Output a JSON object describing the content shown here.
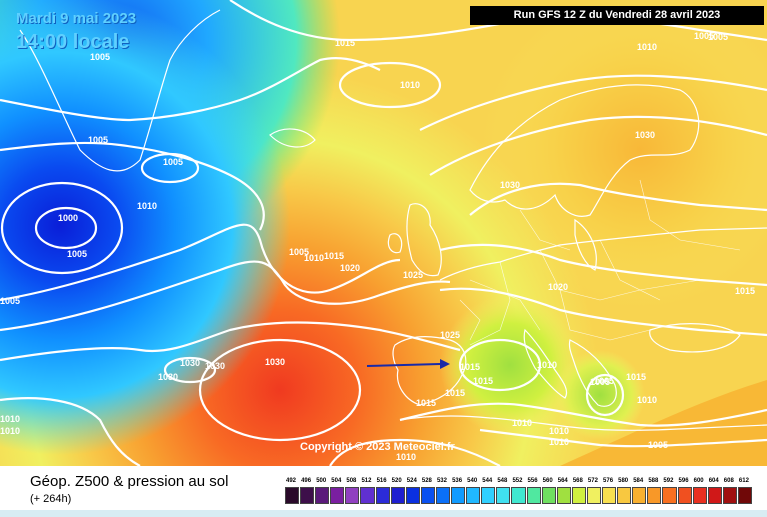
{
  "header": {
    "date": "Mardi 9 mai 2023",
    "local_time": "14:00 locale",
    "run": "Run GFS 12 Z du Vendredi 28 avril 2023"
  },
  "footer": {
    "title": "Géop. Z500 & pression au sol",
    "subtitle": "(+ 264h)"
  },
  "copyright": "Copyright © 2023 Meteociel.fr",
  "legend": {
    "values": [
      "492",
      "496",
      "500",
      "504",
      "508",
      "512",
      "516",
      "520",
      "524",
      "528",
      "532",
      "536",
      "540",
      "544",
      "548",
      "552",
      "556",
      "560",
      "564",
      "568",
      "572",
      "576",
      "580",
      "584",
      "588",
      "592",
      "596",
      "600",
      "604",
      "608",
      "612"
    ],
    "colors": [
      "#2a0a2a",
      "#3d0f4a",
      "#5a1a7a",
      "#7a1fa0",
      "#9040c0",
      "#6030d0",
      "#2b2bd8",
      "#1f1fd0",
      "#0a30e0",
      "#0a50f0",
      "#0a70f8",
      "#109bff",
      "#20b8ff",
      "#30d0ff",
      "#40e0f0",
      "#40e8d0",
      "#50e8a0",
      "#70e060",
      "#a0e040",
      "#d0f040",
      "#f0f060",
      "#f8e050",
      "#f8c840",
      "#f8b030",
      "#f89828",
      "#f87020",
      "#f05020",
      "#e83020",
      "#d01818",
      "#a01010",
      "#700808"
    ]
  },
  "isobars": [
    {
      "label": "1005"
    },
    {
      "label": "1015"
    },
    {
      "label": "1010"
    },
    {
      "label": "1005"
    },
    {
      "label": "1010"
    },
    {
      "label": "1005"
    },
    {
      "label": "1005"
    },
    {
      "label": "1010"
    },
    {
      "label": "1000"
    },
    {
      "label": "1005"
    },
    {
      "label": "1005"
    },
    {
      "label": "1030"
    },
    {
      "label": "1030"
    },
    {
      "label": "1005"
    },
    {
      "label": "1010"
    },
    {
      "label": "1015"
    },
    {
      "label": "1020"
    },
    {
      "label": "1025"
    },
    {
      "label": "1020"
    },
    {
      "label": "1015"
    },
    {
      "label": "1025"
    },
    {
      "label": "1030"
    },
    {
      "label": "1030"
    },
    {
      "label": "1030"
    },
    {
      "label": "1030"
    },
    {
      "label": "1015"
    },
    {
      "label": "1015"
    },
    {
      "label": "1010"
    },
    {
      "label": "1015"
    },
    {
      "label": "1015"
    },
    {
      "label": "1005"
    },
    {
      "label": "1015"
    },
    {
      "label": "1010"
    },
    {
      "label": "1010"
    },
    {
      "label": "1010"
    },
    {
      "label": "1010"
    },
    {
      "label": "1005"
    },
    {
      "label": "1010"
    },
    {
      "label": "1010"
    },
    {
      "label": "1010"
    },
    {
      "label": "1005"
    },
    {
      "label": "1005"
    }
  ]
}
